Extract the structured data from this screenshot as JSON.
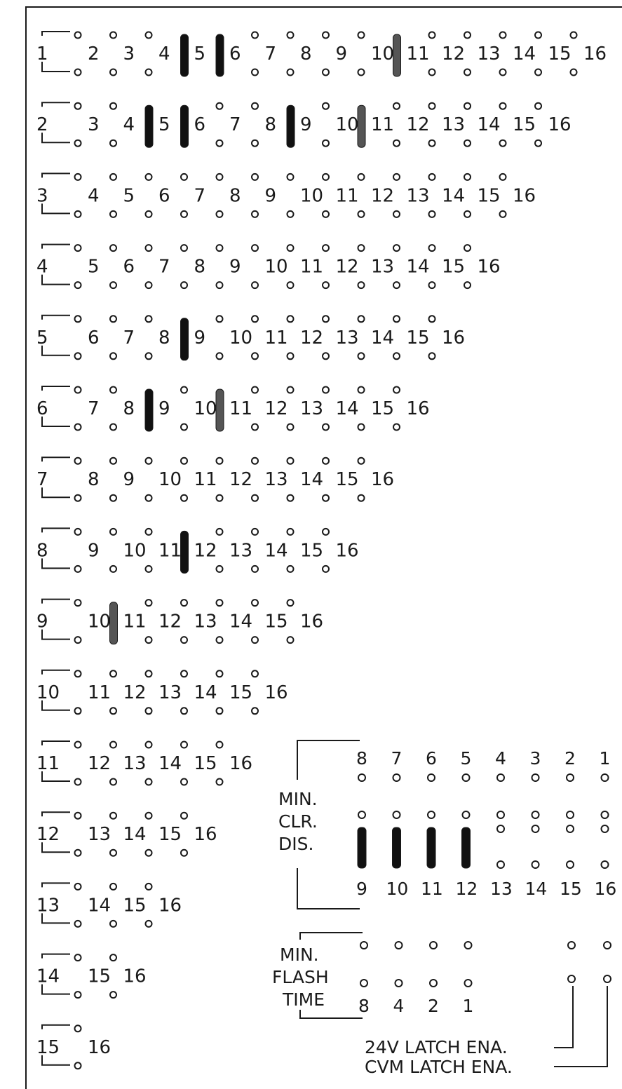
{
  "matrix": {
    "rows": [
      {
        "label": "1",
        "columns": [
          "2",
          "3",
          "4",
          "5",
          "6",
          "7",
          "8",
          "9",
          "10",
          "11",
          "12",
          "13",
          "14",
          "15",
          "16"
        ]
      },
      {
        "label": "2",
        "columns": [
          "3",
          "4",
          "5",
          "6",
          "7",
          "8",
          "9",
          "10",
          "11",
          "12",
          "13",
          "14",
          "15",
          "16"
        ]
      },
      {
        "label": "3",
        "columns": [
          "4",
          "5",
          "6",
          "7",
          "8",
          "9",
          "10",
          "11",
          "12",
          "13",
          "14",
          "15",
          "16"
        ]
      },
      {
        "label": "4",
        "columns": [
          "5",
          "6",
          "7",
          "8",
          "9",
          "10",
          "11",
          "12",
          "13",
          "14",
          "15",
          "16"
        ]
      },
      {
        "label": "5",
        "columns": [
          "6",
          "7",
          "8",
          "9",
          "10",
          "11",
          "12",
          "13",
          "14",
          "15",
          "16"
        ]
      },
      {
        "label": "6",
        "columns": [
          "7",
          "8",
          "9",
          "10",
          "11",
          "12",
          "13",
          "14",
          "15",
          "16"
        ]
      },
      {
        "label": "7",
        "columns": [
          "8",
          "9",
          "10",
          "11",
          "12",
          "13",
          "14",
          "15",
          "16"
        ]
      },
      {
        "label": "8",
        "columns": [
          "9",
          "10",
          "11",
          "12",
          "13",
          "14",
          "15",
          "16"
        ]
      },
      {
        "label": "9",
        "columns": [
          "10",
          "11",
          "12",
          "13",
          "14",
          "15",
          "16"
        ]
      },
      {
        "label": "10",
        "columns": [
          "11",
          "12",
          "13",
          "14",
          "15",
          "16"
        ]
      },
      {
        "label": "11",
        "columns": [
          "12",
          "13",
          "14",
          "15",
          "16"
        ]
      },
      {
        "label": "12",
        "columns": [
          "13",
          "14",
          "15",
          "16"
        ]
      },
      {
        "label": "13",
        "columns": [
          "14",
          "15",
          "16"
        ]
      },
      {
        "label": "14",
        "columns": [
          "15",
          "16"
        ]
      },
      {
        "label": "15",
        "columns": [
          "16"
        ]
      }
    ],
    "jumpers": [
      {
        "row": "1",
        "col": "5",
        "style": "black"
      },
      {
        "row": "1",
        "col": "6",
        "style": "black"
      },
      {
        "row": "1",
        "col": "11",
        "style": "grey"
      },
      {
        "row": "2",
        "col": "5",
        "style": "black"
      },
      {
        "row": "2",
        "col": "6",
        "style": "black"
      },
      {
        "row": "2",
        "col": "9",
        "style": "black"
      },
      {
        "row": "2",
        "col": "11",
        "style": "grey"
      },
      {
        "row": "5",
        "col": "9",
        "style": "black"
      },
      {
        "row": "6",
        "col": "9",
        "style": "black"
      },
      {
        "row": "6",
        "col": "11",
        "style": "grey"
      },
      {
        "row": "8",
        "col": "12",
        "style": "black"
      },
      {
        "row": "9",
        "col": "11",
        "style": "grey"
      }
    ]
  },
  "min_clr_dis": {
    "label_lines": [
      "MIN.",
      "CLR.",
      "DIS."
    ],
    "top_numbers": [
      "8",
      "7",
      "6",
      "5",
      "4",
      "3",
      "2",
      "1"
    ],
    "bottom_numbers": [
      "9",
      "10",
      "11",
      "12",
      "13",
      "14",
      "15",
      "16"
    ],
    "jumpers": [
      "9",
      "10",
      "11",
      "12"
    ]
  },
  "min_flash_time": {
    "label_lines": [
      "MIN.",
      "FLASH",
      "TIME"
    ],
    "numbers": [
      "8",
      "4",
      "2",
      "1"
    ]
  },
  "latch": {
    "lines": [
      "24V LATCH ENA.",
      "CVM LATCH ENA."
    ]
  },
  "colors": {
    "ink": "#1a1a1a",
    "jumper": "#111111",
    "jumper_grey": "#555555",
    "background": "#ffffff"
  }
}
